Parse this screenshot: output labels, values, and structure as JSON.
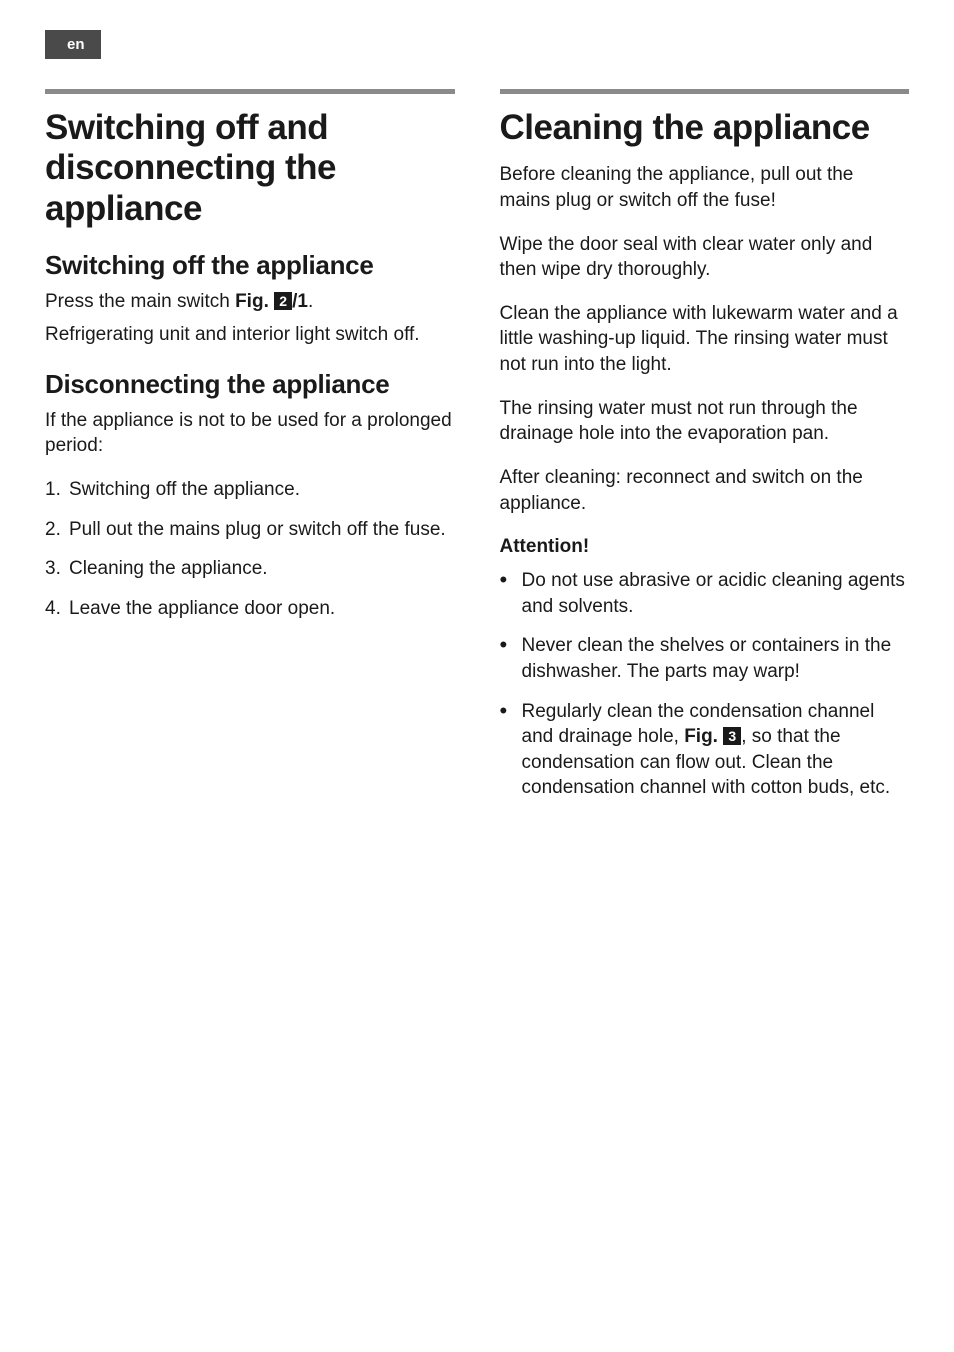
{
  "colors": {
    "lang_tag_bg": "#4a4a4a",
    "lang_tag_text": "#ffffff",
    "rule": "#8a8a8a",
    "text": "#1a1a1a",
    "fig_box_bg": "#1a1a1a",
    "fig_box_text": "#ffffff",
    "background": "#ffffff"
  },
  "typography": {
    "font_family": "Helvetica, Arial, sans-serif",
    "h1_size": 35,
    "h2_size": 26,
    "body_size": 19
  },
  "lang": "en",
  "left": {
    "title": "Switching off and disconnecting the appliance",
    "section1": {
      "heading": "Switching off the appliance",
      "line1_a": "Press the main switch ",
      "line1_b_bold": "Fig. ",
      "fig_num": "2",
      "line1_c_bold": "/1",
      "line1_d": ".",
      "line2": "Refrigerating unit and interior light switch off."
    },
    "section2": {
      "heading": "Disconnecting the appliance",
      "intro": "If the appliance is not to be used for a prolonged period:",
      "steps": [
        "Switching off the appliance.",
        "Pull out the mains plug or switch off the fuse.",
        "Cleaning the appliance.",
        "Leave the appliance door open."
      ]
    }
  },
  "right": {
    "title": "Cleaning the appliance",
    "paras": [
      "Before cleaning the appliance, pull out the mains plug or switch off the fuse!",
      "Wipe the door seal with clear water only and then wipe dry thoroughly.",
      "Clean the appliance with lukewarm water and a little washing-up liquid. The rinsing water must not run into the light.",
      "The rinsing water must not run through the drainage hole into the evaporation pan.",
      "After cleaning: reconnect and switch on the appliance."
    ],
    "attention_label": "Attention!",
    "bullets": [
      {
        "text": "Do not use abrasive or acidic cleaning agents and solvents."
      },
      {
        "text": "Never clean the shelves or containers in the dishwasher. The parts may warp!"
      }
    ],
    "bullet3": {
      "a": "Regularly clean the condensation channel and drainage hole, ",
      "b_bold": "Fig. ",
      "fig_num": "3",
      "c": ", so that the condensation can flow out. Clean the condensation channel with cotton buds, etc."
    }
  }
}
